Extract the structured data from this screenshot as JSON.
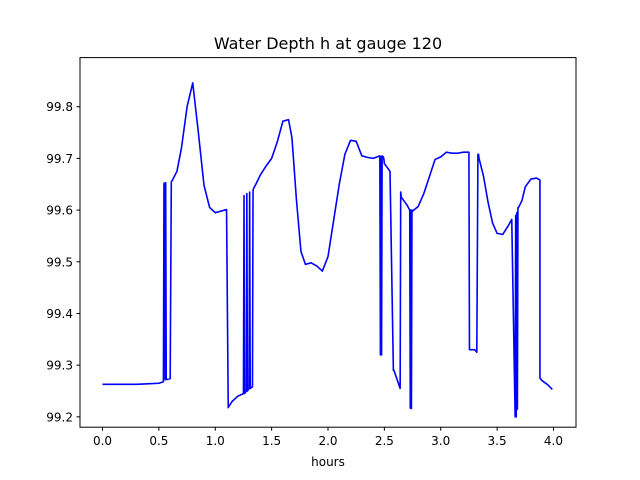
{
  "chart_data": {
    "type": "line",
    "title": "Water Depth h at gauge 120",
    "xlabel": "hours",
    "ylabel": "",
    "xlim": [
      -0.2,
      4.2
    ],
    "ylim": [
      99.18,
      99.895
    ],
    "xticks": [
      0.0,
      0.5,
      1.0,
      1.5,
      2.0,
      2.5,
      3.0,
      3.5,
      4.0
    ],
    "xtick_labels": [
      "0.0",
      "0.5",
      "1.0",
      "1.5",
      "2.0",
      "2.5",
      "3.0",
      "3.5",
      "4.0"
    ],
    "yticks": [
      99.2,
      99.3,
      99.4,
      99.5,
      99.6,
      99.7,
      99.8
    ],
    "ytick_labels": [
      "99.2",
      "99.3",
      "99.4",
      "99.5",
      "99.6",
      "99.7",
      "99.8"
    ],
    "grid": false,
    "series": [
      {
        "color": "#0000ff",
        "x": [
          0.0,
          0.1,
          0.2,
          0.3,
          0.4,
          0.5,
          0.54,
          0.545,
          0.55,
          0.555,
          0.56,
          0.565,
          0.6,
          0.61,
          0.62,
          0.66,
          0.7,
          0.75,
          0.8,
          0.85,
          0.9,
          0.95,
          1.0,
          1.05,
          1.1,
          1.115,
          1.12,
          1.15,
          1.2,
          1.25,
          1.255,
          1.26,
          1.275,
          1.28,
          1.285,
          1.3,
          1.305,
          1.31,
          1.33,
          1.335,
          1.34,
          1.36,
          1.4,
          1.45,
          1.5,
          1.55,
          1.6,
          1.65,
          1.68,
          1.72,
          1.76,
          1.8,
          1.85,
          1.9,
          1.95,
          2.0,
          2.05,
          2.1,
          2.15,
          2.2,
          2.25,
          2.3,
          2.35,
          2.4,
          2.46,
          2.465,
          2.47,
          2.475,
          2.48,
          2.485,
          2.49,
          2.495,
          2.5,
          2.55,
          2.58,
          2.585,
          2.64,
          2.645,
          2.65,
          2.7,
          2.725,
          2.73,
          2.735,
          2.74,
          2.745,
          2.75,
          2.75,
          2.8,
          2.85,
          2.9,
          2.95,
          3.0,
          3.05,
          3.1,
          3.15,
          3.2,
          3.25,
          3.255,
          3.26,
          3.3,
          3.32,
          3.33,
          3.335,
          3.34,
          3.38,
          3.42,
          3.46,
          3.5,
          3.55,
          3.6,
          3.63,
          3.66,
          3.665,
          3.67,
          3.675,
          3.68,
          3.685,
          3.69,
          3.72,
          3.75,
          3.8,
          3.85,
          3.88,
          3.88,
          3.9,
          3.95,
          3.99
        ],
        "y": [
          99.263,
          99.263,
          99.263,
          99.263,
          99.264,
          99.265,
          99.268,
          99.652,
          99.652,
          99.272,
          99.653,
          99.272,
          99.274,
          99.655,
          99.658,
          99.675,
          99.72,
          99.8,
          99.846,
          99.75,
          99.648,
          99.605,
          99.595,
          99.598,
          99.601,
          99.218,
          99.22,
          99.23,
          99.24,
          99.245,
          99.628,
          99.245,
          99.25,
          99.632,
          99.25,
          99.255,
          99.635,
          99.255,
          99.258,
          99.638,
          99.642,
          99.65,
          99.668,
          99.685,
          99.7,
          99.732,
          99.772,
          99.775,
          99.74,
          99.62,
          99.52,
          99.495,
          99.498,
          99.492,
          99.482,
          99.51,
          99.58,
          99.65,
          99.708,
          99.735,
          99.733,
          99.705,
          99.702,
          99.7,
          99.705,
          99.32,
          99.703,
          99.32,
          99.705,
          99.703,
          99.703,
          99.7,
          99.69,
          99.675,
          99.29,
          99.29,
          99.255,
          99.635,
          99.625,
          99.61,
          99.6,
          99.217,
          99.6,
          99.216,
          99.6,
          99.598,
          99.598,
          99.607,
          99.632,
          99.665,
          99.698,
          99.703,
          99.712,
          99.71,
          99.71,
          99.712,
          99.712,
          99.33,
          99.33,
          99.33,
          99.325,
          99.708,
          99.708,
          99.7,
          99.665,
          99.615,
          99.575,
          99.555,
          99.553,
          99.57,
          99.582,
          99.2,
          99.59,
          99.2,
          99.595,
          99.215,
          99.605,
          99.605,
          99.618,
          99.645,
          99.66,
          99.662,
          99.658,
          99.275,
          99.27,
          99.262,
          99.253
        ]
      }
    ]
  }
}
